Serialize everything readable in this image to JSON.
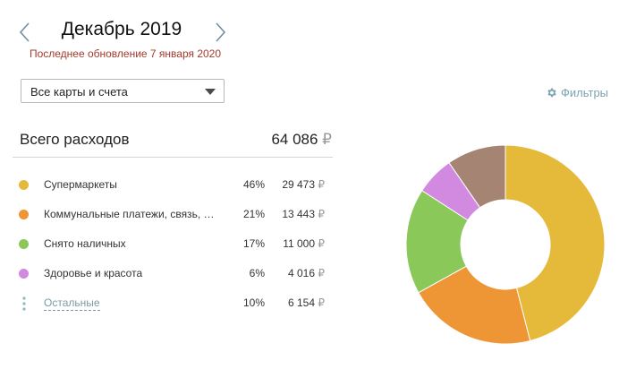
{
  "header": {
    "month_title": "Декабрь 2019",
    "update_note": "Последнее обновление 7 января 2020"
  },
  "account_select": {
    "value": "Все карты и счета"
  },
  "filters": {
    "label": "Фильтры",
    "icon": "gear-icon"
  },
  "total": {
    "label": "Всего расходов",
    "amount": "64 086",
    "currency": "₽"
  },
  "categories": [
    {
      "label": "Супермаркеты",
      "percent": "46%",
      "amount": "29 473",
      "currency": "₽",
      "color": "#e5b93a",
      "value": 29473
    },
    {
      "label": "Коммунальные платежи, связь, …",
      "percent": "21%",
      "amount": "13 443",
      "currency": "₽",
      "color": "#ee9636",
      "value": 13443
    },
    {
      "label": "Снято наличных",
      "percent": "17%",
      "amount": "11 000",
      "currency": "₽",
      "color": "#8bc85a",
      "value": 11000
    },
    {
      "label": "Здоровье и красота",
      "percent": "6%",
      "amount": "4 016",
      "currency": "₽",
      "color": "#d28ae0",
      "value": 4016
    },
    {
      "label": "Остальные",
      "percent": "10%",
      "amount": "6 154",
      "currency": "₽",
      "color": "#a58473",
      "value": 6154
    }
  ],
  "chart_data": {
    "type": "pie",
    "style": "donut",
    "categories": [
      "Супермаркеты",
      "Коммунальные платежи, связь, …",
      "Снято наличных",
      "Здоровье и красота",
      "Остальные"
    ],
    "values": [
      29473,
      13443,
      11000,
      4016,
      6154
    ],
    "percentages": [
      46,
      21,
      17,
      6,
      10
    ],
    "colors": [
      "#e5b93a",
      "#ee9636",
      "#8bc85a",
      "#d28ae0",
      "#a58473"
    ],
    "title": "Всего расходов",
    "total": 64086
  }
}
